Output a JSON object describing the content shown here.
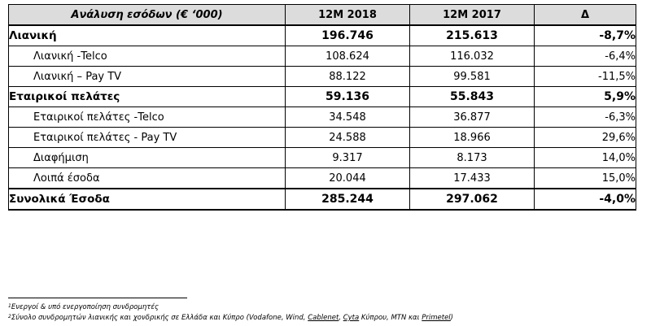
{
  "table": {
    "headers": [
      "Ανάλυση εσόδων (€ ‘000)",
      "12M 2018",
      "12M 2017",
      "Δ"
    ],
    "rows": [
      {
        "label": "Λιανική",
        "v2018": "196.746",
        "v2017": "215.613",
        "delta": "-8,7%",
        "bold": true
      },
      {
        "label": "Λιανική -Telco",
        "v2018": "108.624",
        "v2017": "116.032",
        "delta": "-6,4%",
        "bold": false
      },
      {
        "label": "Λιανική – Pay TV",
        "v2018": "88.122",
        "v2017": "99.581",
        "delta": "-11,5%",
        "bold": false
      },
      {
        "label": "Εταιρικοί πελάτες",
        "v2018": "59.136",
        "v2017": "55.843",
        "delta": "5,9%",
        "bold": true
      },
      {
        "label": "Εταιρικοί πελάτες -Telco",
        "v2018": "34.548",
        "v2017": "36.877",
        "delta": "-6,3%",
        "bold": false
      },
      {
        "label": "Εταιρικοί πελάτες - Pay TV",
        "v2018": "24.588",
        "v2017": "18.966",
        "delta": "29,6%",
        "bold": false
      },
      {
        "label": "Διαφήμιση",
        "v2018": "9.317",
        "v2017": "8.173",
        "delta": "14,0%",
        "bold": false
      },
      {
        "label": "Λοιπά έσοδα",
        "v2018": "20.044",
        "v2017": "17.433",
        "delta": "15,0%",
        "bold": false
      },
      {
        "label": "Συνολικά Έσοδα",
        "v2018": "285.244",
        "v2017": "297.062",
        "delta": "-4,0%",
        "bold": true
      }
    ]
  },
  "footnotes": {
    "fn1_mark": "1",
    "fn1_text": "Ενεργοί & υπό ενεργοποίηση συνδρομητές",
    "fn2_mark": "2",
    "fn2_pre": "Σύνολο συνδρομητών λιανικής και χονδρικής σε Ελλάδα και Κύπρο (Vodafone, Wind, ",
    "fn2_cablenet": "Cablenet",
    "fn2_sep1": ", ",
    "fn2_cyta": "Cyta",
    "fn2_mid": " Κύπρου, MTN και ",
    "fn2_primetel": "Primetel",
    "fn2_post": ")"
  }
}
